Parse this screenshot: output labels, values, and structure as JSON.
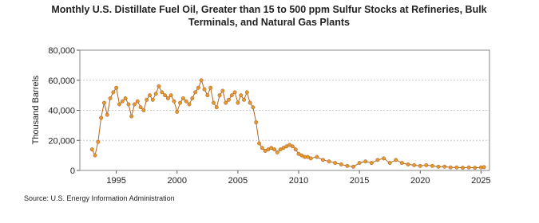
{
  "chart_data": {
    "type": "line",
    "title": "Monthly U.S. Distillate Fuel Oil, Greater than 15 to 500 ppm Sulfur Stocks at Refineries, Bulk Terminals, and Natural Gas Plants",
    "y_label": "Thousand Barrels",
    "source": "Source: U.S. Energy Information Administration",
    "x": [
      1993.0,
      1993.25,
      1993.5,
      1993.75,
      1994.0,
      1994.25,
      1994.5,
      1994.75,
      1995.0,
      1995.25,
      1995.5,
      1995.75,
      1996.0,
      1996.25,
      1996.5,
      1996.75,
      1997.0,
      1997.25,
      1997.5,
      1997.75,
      1998.0,
      1998.25,
      1998.5,
      1998.75,
      1999.0,
      1999.25,
      1999.5,
      1999.75,
      2000.0,
      2000.25,
      2000.5,
      2000.75,
      2001.0,
      2001.25,
      2001.5,
      2001.75,
      2002.0,
      2002.25,
      2002.5,
      2002.75,
      2003.0,
      2003.25,
      2003.5,
      2003.75,
      2004.0,
      2004.25,
      2004.5,
      2004.75,
      2005.0,
      2005.25,
      2005.5,
      2005.75,
      2006.0,
      2006.25,
      2006.5,
      2006.75,
      2007.0,
      2007.25,
      2007.5,
      2007.75,
      2008.0,
      2008.25,
      2008.5,
      2008.75,
      2009.0,
      2009.25,
      2009.5,
      2009.75,
      2010.0,
      2010.25,
      2010.5,
      2010.75,
      2011.0,
      2011.5,
      2012.0,
      2012.5,
      2013.0,
      2013.5,
      2014.0,
      2014.5,
      2015.0,
      2015.5,
      2016.0,
      2016.5,
      2017.0,
      2017.5,
      2018.0,
      2018.5,
      2019.0,
      2019.5,
      2020.0,
      2020.5,
      2021.0,
      2021.5,
      2022.0,
      2022.5,
      2023.0,
      2023.5,
      2024.0,
      2024.5,
      2025.0,
      2025.25
    ],
    "series": [
      {
        "name": "Stocks",
        "color": "#b5651d",
        "values": [
          14000,
          10000,
          19000,
          35000,
          45000,
          37000,
          48000,
          52000,
          55000,
          44000,
          46000,
          48000,
          44000,
          36000,
          44000,
          46000,
          42000,
          40000,
          47000,
          50000,
          47000,
          51000,
          56000,
          52000,
          50000,
          48000,
          50000,
          46000,
          39000,
          45000,
          48000,
          46000,
          44000,
          48000,
          52000,
          55000,
          60000,
          54000,
          50000,
          55000,
          45000,
          42000,
          50000,
          53000,
          45000,
          47000,
          50000,
          52000,
          45000,
          50000,
          47000,
          52000,
          45000,
          42000,
          32000,
          18000,
          15000,
          13000,
          14000,
          15000,
          14000,
          12000,
          14000,
          15000,
          16000,
          17000,
          16000,
          14000,
          11000,
          10000,
          9000,
          9000,
          8000,
          9000,
          7000,
          6000,
          5000,
          4000,
          3000,
          2500,
          5000,
          6000,
          5000,
          7000,
          8000,
          5000,
          7000,
          5000,
          4000,
          3500,
          3000,
          3500,
          3000,
          2500,
          2500,
          2000,
          2000,
          1800,
          2000,
          1800,
          2000,
          2200
        ]
      }
    ],
    "xlim": [
      1992,
      2025.7
    ],
    "xticks": [
      1995,
      2000,
      2005,
      2010,
      2015,
      2020,
      2025
    ],
    "ylim": [
      0,
      80000
    ],
    "yticks": [
      0,
      {
        "value": 20000,
        "label": "20,000"
      },
      {
        "value": 40000,
        "label": "40,000"
      },
      {
        "value": 60000,
        "label": "60,000"
      },
      {
        "value": 80000,
        "label": "80,000"
      }
    ],
    "grid": true
  }
}
